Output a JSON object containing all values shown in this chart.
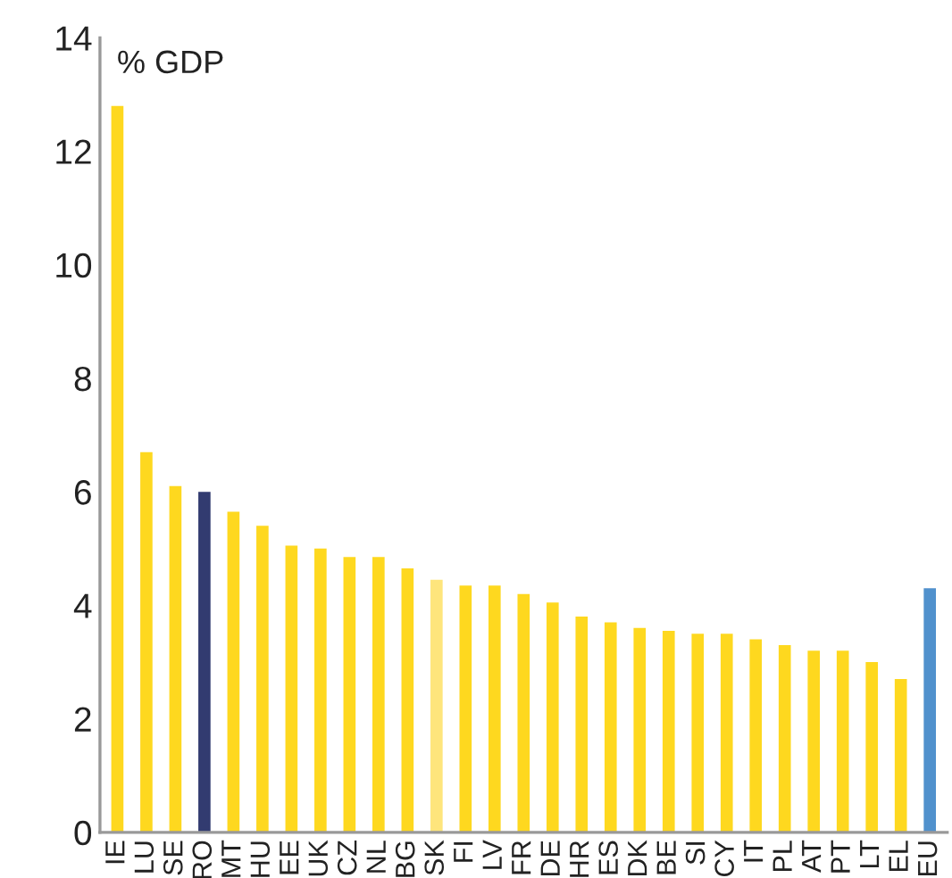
{
  "chart_data": {
    "type": "bar",
    "ylabel": "% GDP",
    "categories": [
      "IE",
      "LU",
      "SE",
      "RO",
      "MT",
      "HU",
      "EE",
      "UK",
      "CZ",
      "NL",
      "BG",
      "SK",
      "FI",
      "LV",
      "FR",
      "DE",
      "HR",
      "ES",
      "DK",
      "BE",
      "SI",
      "CY",
      "IT",
      "PL",
      "AT",
      "PT",
      "LT",
      "EL",
      "EU"
    ],
    "values": [
      12.8,
      6.7,
      6.1,
      6.0,
      5.65,
      5.4,
      5.05,
      5.0,
      4.85,
      4.85,
      4.65,
      4.45,
      4.35,
      4.35,
      4.2,
      4.05,
      3.8,
      3.7,
      3.6,
      3.55,
      3.5,
      3.5,
      3.4,
      3.3,
      3.2,
      3.2,
      3.0,
      2.7,
      4.3
    ],
    "colors": [
      "#fed81f",
      "#fed81f",
      "#fed81f",
      "#323b70",
      "#fed81f",
      "#fed81f",
      "#fed81f",
      "#fed81f",
      "#fed81f",
      "#fed81f",
      "#fed81f",
      "#fee57c",
      "#fed81f",
      "#fed81f",
      "#fed81f",
      "#fed81f",
      "#fed81f",
      "#fed81f",
      "#fed81f",
      "#fed81f",
      "#fed81f",
      "#fed81f",
      "#fed81f",
      "#fed81f",
      "#fed81f",
      "#fed81f",
      "#fed81f",
      "#fed81f",
      "#5091cd"
    ],
    "ylim": [
      0,
      14
    ],
    "yticks": [
      0,
      2,
      4,
      6,
      8,
      10,
      12,
      14
    ],
    "grid": false,
    "legend": false
  }
}
